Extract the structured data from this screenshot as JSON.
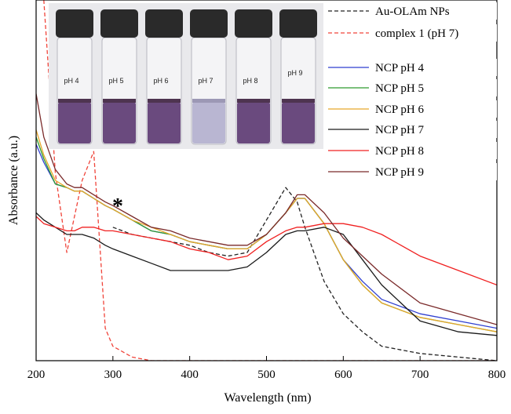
{
  "chart_data": {
    "type": "line",
    "x_label": "Wavelength (nm)",
    "y_label": "Absorbance (a.u.)",
    "x": [
      200,
      210,
      225,
      240,
      250,
      260,
      275,
      290,
      300,
      325,
      350,
      375,
      400,
      425,
      450,
      475,
      500,
      525,
      540,
      550,
      575,
      600,
      625,
      650,
      700,
      750,
      800
    ],
    "xlim": [
      200,
      800
    ],
    "xticks": [
      200,
      300,
      400,
      500,
      600,
      700,
      800
    ],
    "ylim": [
      0,
      1
    ],
    "annotations": [
      "*"
    ],
    "inset_labels": [
      "pH 4",
      "pH 5",
      "pH 6",
      "pH 7",
      "pH 8",
      "pH 9"
    ],
    "series": [
      {
        "name": "Au-OLAm NPs",
        "color": "#222222",
        "dashed": true,
        "values": [
          null,
          null,
          null,
          null,
          null,
          null,
          null,
          null,
          0.37,
          0.35,
          0.34,
          0.33,
          0.32,
          0.3,
          0.29,
          0.3,
          0.39,
          0.48,
          0.44,
          0.37,
          0.22,
          0.13,
          0.08,
          0.04,
          0.02,
          0.01,
          0.0
        ]
      },
      {
        "name": "complex 1 (pH 7)",
        "color": "#f0443a",
        "dashed": true,
        "values": [
          null,
          1.0,
          0.52,
          0.3,
          0.4,
          0.5,
          0.58,
          0.09,
          0.04,
          0.01,
          0,
          0,
          0,
          0,
          0,
          0,
          0,
          0,
          0,
          0,
          0,
          0,
          0,
          0,
          0,
          0,
          0
        ]
      },
      {
        "name": "NCP pH 4",
        "color": "#2f3fd0",
        "dashed": false,
        "values": [
          0.6,
          0.55,
          0.49,
          0.48,
          0.47,
          0.47,
          0.45,
          0.43,
          0.42,
          0.39,
          0.36,
          0.35,
          0.33,
          0.32,
          0.31,
          0.31,
          0.35,
          0.41,
          0.45,
          0.45,
          0.38,
          0.28,
          0.22,
          0.17,
          0.13,
          0.11,
          0.09
        ]
      },
      {
        "name": "NCP pH 5",
        "color": "#2e9a2e",
        "dashed": false,
        "values": [
          0.62,
          0.56,
          0.49,
          0.48,
          0.47,
          0.47,
          0.45,
          0.43,
          0.42,
          0.39,
          0.36,
          0.35,
          0.33,
          0.32,
          0.31,
          0.31,
          0.35,
          0.41,
          0.45,
          0.45,
          0.38,
          0.28,
          0.21,
          0.16,
          0.12,
          0.1,
          0.08
        ]
      },
      {
        "name": "NCP pH 6",
        "color": "#e8a72a",
        "dashed": false,
        "values": [
          0.64,
          0.57,
          0.5,
          0.48,
          0.47,
          0.47,
          0.45,
          0.43,
          0.42,
          0.39,
          0.37,
          0.35,
          0.33,
          0.32,
          0.31,
          0.31,
          0.35,
          0.41,
          0.45,
          0.45,
          0.38,
          0.28,
          0.21,
          0.16,
          0.12,
          0.1,
          0.08
        ]
      },
      {
        "name": "NCP pH 7",
        "color": "#1a1a1a",
        "dashed": false,
        "values": [
          0.41,
          0.39,
          0.37,
          0.35,
          0.35,
          0.35,
          0.34,
          0.32,
          0.31,
          0.29,
          0.27,
          0.25,
          0.25,
          0.25,
          0.25,
          0.26,
          0.3,
          0.35,
          0.36,
          0.36,
          0.37,
          0.35,
          0.28,
          0.21,
          0.11,
          0.08,
          0.07
        ]
      },
      {
        "name": "NCP pH 8",
        "color": "#f02020",
        "dashed": false,
        "values": [
          0.4,
          0.38,
          0.37,
          0.36,
          0.36,
          0.37,
          0.37,
          0.36,
          0.36,
          0.35,
          0.34,
          0.33,
          0.31,
          0.3,
          0.28,
          0.29,
          0.33,
          0.36,
          0.37,
          0.37,
          0.38,
          0.38,
          0.37,
          0.35,
          0.29,
          0.25,
          0.21
        ]
      },
      {
        "name": "NCP pH 9",
        "color": "#7a2a2a",
        "dashed": false,
        "values": [
          0.74,
          0.62,
          0.53,
          0.49,
          0.48,
          0.48,
          0.46,
          0.44,
          0.43,
          0.4,
          0.37,
          0.36,
          0.34,
          0.33,
          0.32,
          0.32,
          0.35,
          0.41,
          0.46,
          0.46,
          0.41,
          0.34,
          0.29,
          0.24,
          0.16,
          0.13,
          0.1
        ]
      }
    ]
  }
}
